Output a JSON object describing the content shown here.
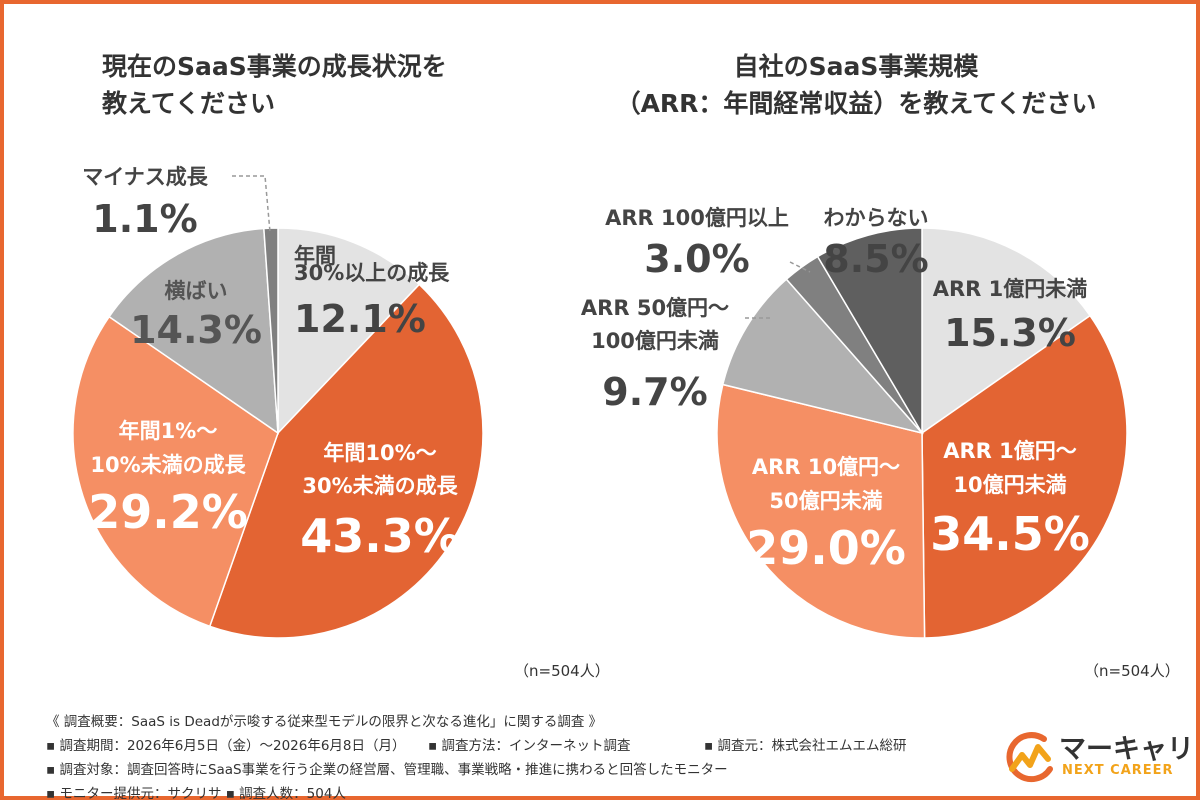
{
  "chart_data": [
    {
      "type": "pie",
      "title": [
        "現在のSaaS事業の成長状況を",
        "教えてください"
      ],
      "sample_note": "（n=504人）",
      "slices": [
        {
          "label": [
            "年間",
            "30%以上の成長"
          ],
          "value": 12.1,
          "value_label": "12.1%",
          "color": "#e3e3e3"
        },
        {
          "label": [
            "年間10%〜",
            "30%未満の成長"
          ],
          "value": 43.3,
          "value_label": "43.3%",
          "color": "#e36433"
        },
        {
          "label": [
            "年間1%〜",
            "10%未満の成長"
          ],
          "value": 29.2,
          "value_label": "29.2%",
          "color": "#f58f64"
        },
        {
          "label": [
            "横ばい"
          ],
          "value": 14.3,
          "value_label": "14.3%",
          "color": "#b1b1b1"
        },
        {
          "label": [
            "マイナス成長"
          ],
          "value": 1.1,
          "value_label": "1.1%",
          "color": "#808080"
        }
      ]
    },
    {
      "type": "pie",
      "title": [
        "自社のSaaS事業規模",
        "（ARR：年間経常収益）を教えてください"
      ],
      "sample_note": "（n=504人）",
      "slices": [
        {
          "label": [
            "ARR 1億円未満"
          ],
          "value": 15.3,
          "value_label": "15.3%",
          "color": "#e3e3e3"
        },
        {
          "label": [
            "ARR 1億円〜",
            "10億円未満"
          ],
          "value": 34.5,
          "value_label": "34.5%",
          "color": "#e36433"
        },
        {
          "label": [
            "ARR 10億円〜",
            "50億円未満"
          ],
          "value": 29.0,
          "value_label": "29.0%",
          "color": "#f58f64"
        },
        {
          "label": [
            "ARR 50億円〜",
            "100億円未満"
          ],
          "value": 9.7,
          "value_label": "9.7%",
          "color": "#b1b1b1"
        },
        {
          "label": [
            "ARR 100億円以上"
          ],
          "value": 3.0,
          "value_label": "3.0%",
          "color": "#808080"
        },
        {
          "label": [
            "わからない"
          ],
          "value": 8.5,
          "value_label": "8.5%",
          "color": "#5f5f5f"
        }
      ]
    }
  ],
  "footer": {
    "survey_name": "《 調査概要：SaaS is Deadが示唆する従来型モデルの限界と次なる進化」に関する調査 》",
    "period": "▪ 調査期間：2026年6月5日（金）〜2026年6月8日（月）",
    "method": "▪ 調査方法：インターネット調査",
    "organizer": "▪ 調査元：株式会社エムエム総研",
    "target": "▪ 調査対象：調査回答時にSaaS事業を行う企業の経営層、管理職、事業戦略・推進に携わると回答したモニター",
    "provider": "▪ モニター提供元：サクリサ ▪ 調査人数：504人"
  },
  "logo": {
    "name": "マーキャリ",
    "sub": "NEXT CAREER",
    "colors": {
      "orange": "#e8672f",
      "yellow": "#f2a31a"
    }
  }
}
